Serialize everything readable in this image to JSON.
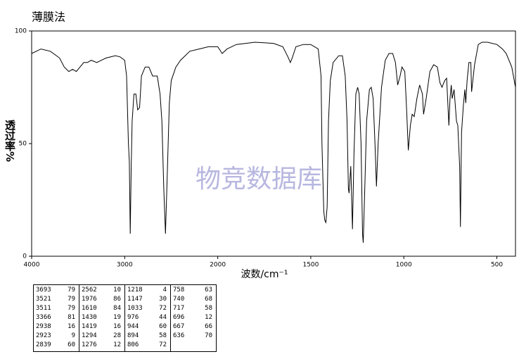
{
  "chart_data": {
    "type": "line",
    "title": "薄膜法",
    "ylabel": "透过率%",
    "xlabel": "波数/cm⁻¹",
    "watermark": "物竞数据库",
    "color": "#000000",
    "xlim": [
      4000,
      400
    ],
    "x_scale_break": 2000,
    "ylim": [
      0,
      100
    ],
    "xticks": [
      4000,
      3000,
      2000,
      1500,
      1000,
      500
    ],
    "yticks": [
      0,
      50,
      100
    ],
    "grid": false,
    "x": [
      4000,
      3900,
      3800,
      3700,
      3650,
      3600,
      3560,
      3520,
      3480,
      3440,
      3400,
      3360,
      3300,
      3250,
      3200,
      3100,
      3050,
      3000,
      2980,
      2960,
      2950,
      2940,
      2930,
      2920,
      2900,
      2880,
      2860,
      2840,
      2820,
      2780,
      2740,
      2700,
      2650,
      2620,
      2600,
      2580,
      2562,
      2540,
      2520,
      2500,
      2450,
      2400,
      2300,
      2200,
      2100,
      2050,
      2000,
      1976,
      1950,
      1900,
      1800,
      1700,
      1650,
      1620,
      1610,
      1600,
      1580,
      1540,
      1500,
      1460,
      1445,
      1440,
      1430,
      1425,
      1419,
      1412,
      1405,
      1395,
      1380,
      1350,
      1330,
      1315,
      1305,
      1298,
      1294,
      1285,
      1276,
      1268,
      1258,
      1248,
      1240,
      1230,
      1222,
      1218,
      1210,
      1200,
      1185,
      1175,
      1165,
      1155,
      1147,
      1138,
      1120,
      1100,
      1080,
      1060,
      1045,
      1033,
      1020,
      1010,
      995,
      985,
      976,
      965,
      955,
      944,
      930,
      915,
      900,
      894,
      880,
      860,
      840,
      820,
      806,
      795,
      780,
      770,
      758,
      752,
      745,
      740,
      730,
      717,
      710,
      700,
      696,
      690,
      680,
      672,
      667,
      660,
      650,
      640,
      636,
      620,
      600,
      580,
      550,
      500,
      470,
      450,
      420,
      400
    ],
    "values": [
      90,
      92,
      91,
      88,
      84,
      82,
      83,
      82,
      84,
      86,
      86,
      87,
      86,
      87,
      88,
      89,
      88.5,
      87,
      80,
      50,
      42,
      10,
      40,
      60,
      72,
      72,
      65,
      66,
      80,
      84,
      84,
      80,
      80,
      72,
      60,
      30,
      10,
      40,
      68,
      78,
      84,
      87,
      91,
      92,
      93,
      93,
      93,
      90,
      92,
      94,
      95,
      94.5,
      93,
      88,
      86,
      88,
      93,
      94,
      94,
      92,
      80,
      50,
      20,
      16,
      15,
      22,
      60,
      78,
      86,
      89,
      89,
      80,
      60,
      30,
      28,
      40,
      12,
      45,
      72,
      75,
      72,
      50,
      10,
      6,
      30,
      60,
      74,
      75,
      70,
      50,
      31,
      50,
      75,
      87,
      90,
      90,
      86,
      76,
      80,
      84,
      82,
      65,
      47,
      58,
      63,
      62,
      70,
      76,
      72,
      63,
      70,
      82,
      85,
      84,
      77,
      75,
      78,
      79,
      58,
      70,
      76,
      70,
      74,
      60,
      58,
      40,
      13,
      55,
      67,
      74,
      68,
      78,
      86,
      86,
      73,
      85,
      94,
      95,
      95,
      94,
      92,
      90,
      84,
      75
    ]
  },
  "peak_table": [
    [
      [
        3693,
        79
      ],
      [
        3521,
        79
      ],
      [
        3511,
        79
      ],
      [
        3366,
        81
      ],
      [
        2938,
        16
      ],
      [
        2923,
        9
      ],
      [
        2839,
        60
      ]
    ],
    [
      [
        2562,
        10
      ],
      [
        1976,
        86
      ],
      [
        1610,
        84
      ],
      [
        1430,
        19
      ],
      [
        1419,
        16
      ],
      [
        1294,
        28
      ],
      [
        1276,
        12
      ]
    ],
    [
      [
        1218,
        4
      ],
      [
        1147,
        30
      ],
      [
        1033,
        72
      ],
      [
        976,
        44
      ],
      [
        944,
        60
      ],
      [
        894,
        58
      ],
      [
        806,
        72
      ]
    ],
    [
      [
        758,
        63
      ],
      [
        740,
        68
      ],
      [
        717,
        58
      ],
      [
        696,
        12
      ],
      [
        667,
        66
      ],
      [
        636,
        70
      ]
    ]
  ]
}
